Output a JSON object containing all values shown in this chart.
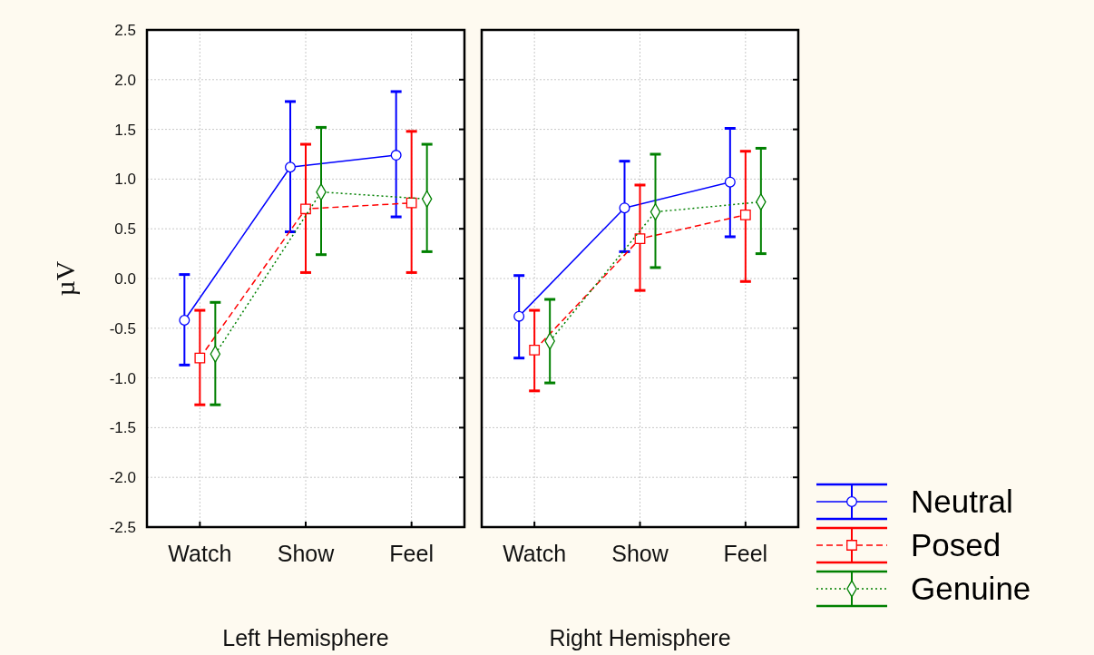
{
  "chart_data": [
    {
      "type": "line",
      "xlabel": "Left Hemisphere",
      "ylabel": "µV",
      "categories": [
        "Watch",
        "Show",
        "Feel"
      ],
      "ylim": [
        -2.5,
        2.5
      ],
      "yticks": [
        {
          "value": -2.5,
          "label": "-2.5"
        },
        {
          "value": -2,
          "label": "-2.0"
        },
        {
          "value": -1.5,
          "label": "-1.5"
        },
        {
          "value": -1,
          "label": "-1.0"
        },
        {
          "value": -0.5,
          "label": "-0.5"
        },
        {
          "value": 0,
          "label": "0.0"
        },
        {
          "value": 0.5,
          "label": "0.5"
        },
        {
          "value": 1,
          "label": "1.0"
        },
        {
          "value": 1.5,
          "label": "1.5"
        },
        {
          "value": 2,
          "label": "2.0"
        },
        {
          "value": 2.5,
          "label": "2.5"
        }
      ],
      "grid": true,
      "series": [
        {
          "color": "#0000ff",
          "marker": "circle",
          "line_style": "solid",
          "values": [
            -0.42,
            1.12,
            1.24
          ],
          "errors": [
            [
              -0.87,
              0.04
            ],
            [
              0.47,
              1.78
            ],
            [
              0.62,
              1.88
            ]
          ]
        },
        {
          "color": "#ff0000",
          "marker": "square",
          "line_style": "dashed",
          "values": [
            -0.8,
            0.7,
            0.76
          ],
          "errors": [
            [
              -1.27,
              -0.32
            ],
            [
              0.06,
              1.35
            ],
            [
              0.06,
              1.48
            ]
          ]
        },
        {
          "color": "#008000",
          "marker": "diamond",
          "line_style": "dotted",
          "values": [
            -0.76,
            0.87,
            0.8
          ],
          "errors": [
            [
              -1.27,
              -0.24
            ],
            [
              0.24,
              1.52
            ],
            [
              0.27,
              1.35
            ]
          ]
        }
      ]
    },
    {
      "type": "line",
      "xlabel": "Right Hemisphere",
      "categories": [
        "Watch",
        "Show",
        "Feel"
      ],
      "ylim": [
        -2.5,
        2.5
      ],
      "yticks": [
        -2.5,
        -2,
        -1.5,
        -1,
        -0.5,
        0,
        0.5,
        1,
        1.5,
        2,
        2.5
      ],
      "tick_labels": "x",
      "grid": true,
      "legend": "bottom right",
      "series": [
        {
          "name": "Neutral",
          "color": "#0000ff",
          "marker": "circle",
          "line_style": "solid",
          "values": [
            -0.38,
            0.71,
            0.97
          ],
          "errors": [
            [
              -0.8,
              0.03
            ],
            [
              0.27,
              1.18
            ],
            [
              0.42,
              1.51
            ]
          ]
        },
        {
          "name": "Posed",
          "color": "#ff0000",
          "marker": "square",
          "line_style": "dashed",
          "values": [
            -0.72,
            0.4,
            0.64
          ],
          "errors": [
            [
              -1.13,
              -0.32
            ],
            [
              -0.12,
              0.94
            ],
            [
              -0.03,
              1.28
            ]
          ]
        },
        {
          "name": "Genuine",
          "color": "#008000",
          "marker": "diamond",
          "line_style": "dotted",
          "values": [
            -0.63,
            0.67,
            0.77
          ],
          "errors": [
            [
              -1.05,
              -0.21
            ],
            [
              0.11,
              1.25
            ],
            [
              0.25,
              1.31
            ]
          ]
        }
      ]
    }
  ]
}
